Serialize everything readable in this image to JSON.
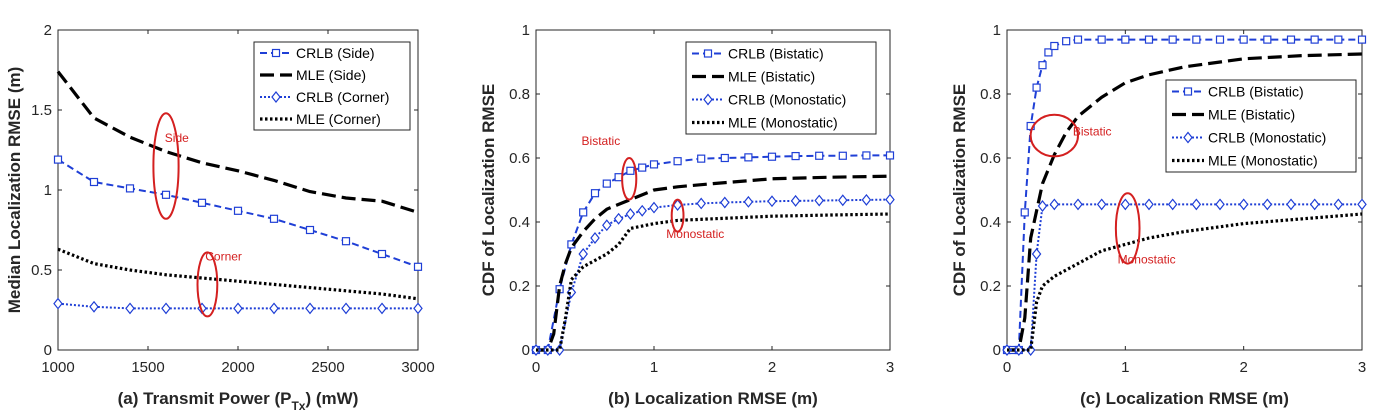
{
  "colors": {
    "crlb": "#1f3fd6",
    "mle": "#000000",
    "annotation": "#d42020",
    "axis": "#262626"
  },
  "chart_data": [
    {
      "id": "a",
      "type": "line",
      "xlabel_pre": "(a) Transmit Power (P",
      "xlabel_sub": "Tx",
      "xlabel_post": ") (mW)",
      "ylabel": "Median Localization RMSE (m)",
      "xlim": [
        1000,
        3000
      ],
      "ylim": [
        0,
        2
      ],
      "xticks": [
        1000,
        1500,
        2000,
        2500,
        3000
      ],
      "xtick_labels": [
        "1000",
        "1500",
        "2000",
        "2500",
        "3000"
      ],
      "yticks": [
        0,
        0.5,
        1,
        1.5,
        2
      ],
      "ytick_labels": [
        "0",
        "0.5",
        "1",
        "1.5",
        "2"
      ],
      "legend_position": "top-right",
      "series": [
        {
          "name": "CRLB  (Side)",
          "style": "crlb-square",
          "x": [
            1000,
            1200,
            1400,
            1600,
            1800,
            2000,
            2200,
            2400,
            2600,
            2800,
            3000
          ],
          "y": [
            1.19,
            1.05,
            1.01,
            0.97,
            0.92,
            0.87,
            0.82,
            0.75,
            0.68,
            0.6,
            0.52
          ]
        },
        {
          "name": "MLE  (Side)",
          "style": "mle-dash",
          "x": [
            1000,
            1200,
            1400,
            1600,
            1800,
            2000,
            2200,
            2400,
            2600,
            2800,
            3000
          ],
          "y": [
            1.74,
            1.45,
            1.33,
            1.24,
            1.17,
            1.12,
            1.06,
            0.99,
            0.95,
            0.93,
            0.86
          ]
        },
        {
          "name": "CRLB  (Corner)",
          "style": "crlb-diamond",
          "x": [
            1000,
            1200,
            1400,
            1600,
            1800,
            2000,
            2200,
            2400,
            2600,
            2800,
            3000
          ],
          "y": [
            0.29,
            0.27,
            0.26,
            0.26,
            0.26,
            0.26,
            0.26,
            0.26,
            0.26,
            0.26,
            0.26
          ]
        },
        {
          "name": "MLE  (Corner)",
          "style": "mle-dot",
          "x": [
            1000,
            1200,
            1400,
            1600,
            1800,
            2000,
            2200,
            2400,
            2600,
            2800,
            3000
          ],
          "y": [
            0.63,
            0.54,
            0.5,
            0.47,
            0.45,
            0.43,
            0.41,
            0.39,
            0.37,
            0.35,
            0.32
          ]
        }
      ],
      "annotations": [
        {
          "text": "Side",
          "cx": 1600,
          "cy": 1.15,
          "rx": 70,
          "ry": 0.33,
          "tx": 1660,
          "ty": 1.3
        },
        {
          "text": "Corner",
          "cx": 1830,
          "cy": 0.41,
          "rx": 55,
          "ry": 0.2,
          "tx": 1920,
          "ty": 0.56
        }
      ]
    },
    {
      "id": "b",
      "type": "line",
      "xlabel": "(b) Localization RMSE (m)",
      "ylabel": "CDF of Localization RMSE",
      "xlim": [
        0,
        3
      ],
      "ylim": [
        0,
        1
      ],
      "xticks": [
        0,
        1,
        2,
        3
      ],
      "xtick_labels": [
        "0",
        "1",
        "2",
        "3"
      ],
      "yticks": [
        0,
        0.2,
        0.4,
        0.6,
        0.8,
        1
      ],
      "ytick_labels": [
        "0",
        "0.2",
        "0.4",
        "0.6",
        "0.8",
        "1"
      ],
      "legend_position": "top-right",
      "series": [
        {
          "name": "CRLB  (Bistatic)",
          "style": "crlb-square",
          "x": [
            0,
            0.1,
            0.2,
            0.3,
            0.4,
            0.5,
            0.6,
            0.7,
            0.8,
            0.9,
            1.0,
            1.2,
            1.4,
            1.6,
            1.8,
            2.0,
            2.2,
            2.4,
            2.6,
            2.8,
            3.0
          ],
          "y": [
            0,
            0,
            0.19,
            0.33,
            0.43,
            0.49,
            0.52,
            0.54,
            0.56,
            0.57,
            0.58,
            0.59,
            0.598,
            0.6,
            0.602,
            0.604,
            0.606,
            0.607,
            0.607,
            0.608,
            0.608
          ]
        },
        {
          "name": "MLE  (Bistatic)",
          "style": "mle-dash",
          "x": [
            0,
            0.1,
            0.15,
            0.2,
            0.25,
            0.3,
            0.4,
            0.5,
            0.6,
            0.8,
            1.0,
            1.2,
            1.5,
            2.0,
            2.5,
            3.0
          ],
          "y": [
            0,
            0,
            0.05,
            0.2,
            0.27,
            0.32,
            0.37,
            0.41,
            0.44,
            0.47,
            0.5,
            0.51,
            0.52,
            0.535,
            0.54,
            0.543
          ]
        },
        {
          "name": "CRLB  (Monostatic)",
          "style": "crlb-diamond",
          "x": [
            0,
            0.1,
            0.2,
            0.3,
            0.4,
            0.5,
            0.6,
            0.7,
            0.8,
            0.9,
            1.0,
            1.2,
            1.4,
            1.6,
            1.8,
            2.0,
            2.2,
            2.4,
            2.6,
            2.8,
            3.0
          ],
          "y": [
            0,
            0,
            0,
            0.18,
            0.3,
            0.35,
            0.39,
            0.41,
            0.425,
            0.435,
            0.445,
            0.453,
            0.458,
            0.461,
            0.463,
            0.465,
            0.466,
            0.467,
            0.468,
            0.469,
            0.47
          ]
        },
        {
          "name": "MLE  (Monostatic)",
          "style": "mle-dot",
          "x": [
            0,
            0.1,
            0.2,
            0.25,
            0.3,
            0.4,
            0.5,
            0.6,
            0.7,
            0.8,
            1.0,
            1.2,
            1.5,
            2.0,
            2.5,
            3.0
          ],
          "y": [
            0,
            0,
            0,
            0.1,
            0.22,
            0.26,
            0.28,
            0.3,
            0.33,
            0.38,
            0.395,
            0.405,
            0.41,
            0.418,
            0.422,
            0.425
          ]
        }
      ],
      "annotations": [
        {
          "text": "Bistatic",
          "cx": 0.79,
          "cy": 0.535,
          "rx": 0.06,
          "ry": 0.065,
          "tx": 0.55,
          "ty": 0.64
        },
        {
          "text": "Monostatic",
          "cx": 1.2,
          "cy": 0.42,
          "rx": 0.05,
          "ry": 0.05,
          "tx": 1.35,
          "ty": 0.35
        }
      ]
    },
    {
      "id": "c",
      "type": "line",
      "xlabel": "(c) Localization RMSE (m)",
      "ylabel": "CDF of Localization RMSE",
      "xlim": [
        0,
        3
      ],
      "ylim": [
        0,
        1
      ],
      "xticks": [
        0,
        1,
        2,
        3
      ],
      "xtick_labels": [
        "0",
        "1",
        "2",
        "3"
      ],
      "yticks": [
        0,
        0.2,
        0.4,
        0.6,
        0.8,
        1
      ],
      "ytick_labels": [
        "0",
        "0.2",
        "0.4",
        "0.6",
        "0.8",
        "1"
      ],
      "legend_position": "top-right",
      "series": [
        {
          "name": "CRLB  (Bistatic)",
          "style": "crlb-square",
          "x": [
            0,
            0.05,
            0.1,
            0.15,
            0.2,
            0.25,
            0.3,
            0.35,
            0.4,
            0.5,
            0.6,
            0.8,
            1.0,
            1.2,
            1.4,
            1.6,
            1.8,
            2.0,
            2.2,
            2.4,
            2.6,
            2.8,
            3.0
          ],
          "y": [
            0,
            0,
            0,
            0.43,
            0.7,
            0.82,
            0.89,
            0.93,
            0.95,
            0.965,
            0.97,
            0.97,
            0.97,
            0.97,
            0.97,
            0.97,
            0.97,
            0.97,
            0.97,
            0.97,
            0.97,
            0.97,
            0.97
          ]
        },
        {
          "name": "MLE  (Bistatic)",
          "style": "mle-dash",
          "x": [
            0,
            0.1,
            0.15,
            0.2,
            0.3,
            0.4,
            0.5,
            0.6,
            0.8,
            1.0,
            1.2,
            1.5,
            2.0,
            2.5,
            3.0
          ],
          "y": [
            0,
            0,
            0.1,
            0.35,
            0.52,
            0.61,
            0.68,
            0.73,
            0.79,
            0.835,
            0.86,
            0.885,
            0.91,
            0.92,
            0.925
          ]
        },
        {
          "name": "CRLB  (Monostatic)",
          "style": "crlb-diamond",
          "x": [
            0,
            0.1,
            0.2,
            0.25,
            0.3,
            0.4,
            0.6,
            0.8,
            1.0,
            1.2,
            1.4,
            1.6,
            1.8,
            2.0,
            2.2,
            2.4,
            2.6,
            2.8,
            3.0
          ],
          "y": [
            0,
            0,
            0,
            0.3,
            0.45,
            0.455,
            0.455,
            0.455,
            0.455,
            0.455,
            0.455,
            0.455,
            0.455,
            0.455,
            0.455,
            0.455,
            0.455,
            0.455,
            0.455
          ]
        },
        {
          "name": "MLE  (Monostatic)",
          "style": "mle-dot",
          "x": [
            0,
            0.1,
            0.2,
            0.25,
            0.3,
            0.4,
            0.6,
            0.8,
            1.0,
            1.2,
            1.5,
            2.0,
            2.5,
            3.0
          ],
          "y": [
            0,
            0,
            0,
            0.15,
            0.2,
            0.23,
            0.27,
            0.31,
            0.33,
            0.35,
            0.37,
            0.395,
            0.41,
            0.425
          ]
        }
      ],
      "annotations": [
        {
          "text": "Bistatic",
          "cx": 0.4,
          "cy": 0.67,
          "rx": 0.2,
          "ry": 0.065,
          "tx": 0.72,
          "ty": 0.67
        },
        {
          "text": "Monostatic",
          "cx": 1.02,
          "cy": 0.38,
          "rx": 0.1,
          "ry": 0.11,
          "tx": 1.18,
          "ty": 0.27
        }
      ]
    }
  ]
}
